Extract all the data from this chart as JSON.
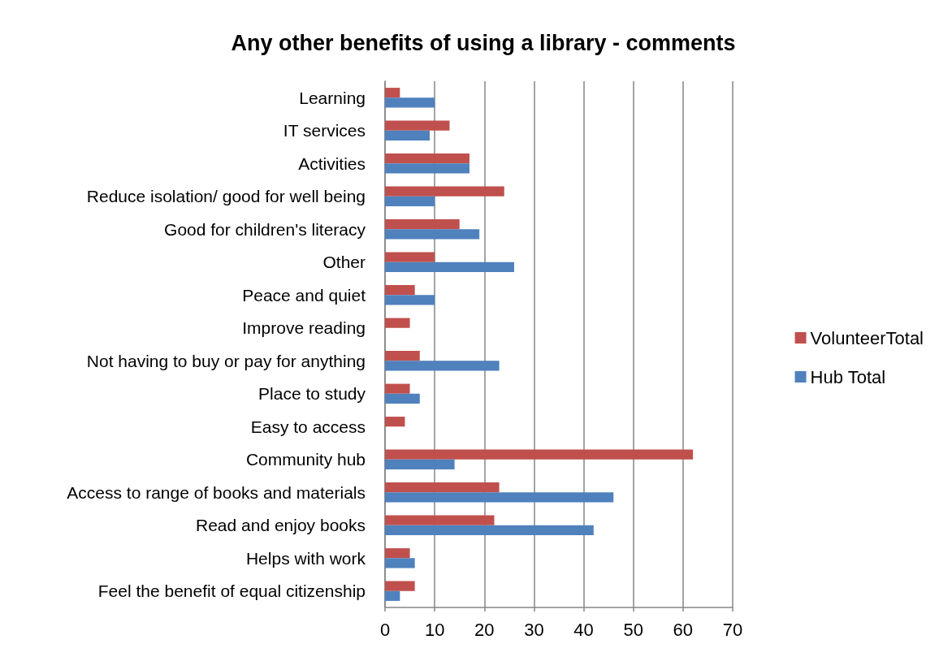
{
  "chart_data": {
    "type": "bar",
    "orientation": "horizontal",
    "title": "Any other benefits of using a library - comments",
    "categories": [
      "Learning",
      "IT services",
      "Activities",
      "Reduce isolation/ good for well being",
      "Good for children's literacy",
      "Other",
      "Peace and quiet",
      "Improve reading",
      "Not having to buy or pay for anything",
      "Place to study",
      "Easy to access",
      "Community hub",
      "Access to range of books and materials",
      "Read and enjoy books",
      "Helps with work",
      "Feel the benefit of equal citizenship"
    ],
    "series": [
      {
        "name": "VolunteerTotal",
        "color": "#c0504d",
        "values": [
          3,
          13,
          17,
          24,
          15,
          10,
          6,
          5,
          7,
          5,
          4,
          62,
          23,
          22,
          5,
          6
        ]
      },
      {
        "name": "Hub Total",
        "color": "#4f81bd",
        "values": [
          10,
          9,
          17,
          10,
          19,
          26,
          10,
          0,
          23,
          7,
          0,
          14,
          46,
          42,
          6,
          3
        ]
      }
    ],
    "xlim": [
      0,
      70
    ],
    "xticks": [
      0,
      10,
      20,
      30,
      40,
      50,
      60,
      70
    ],
    "grid": "x",
    "legend": "right"
  }
}
